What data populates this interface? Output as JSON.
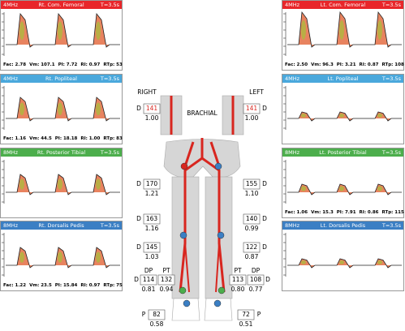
{
  "left_panels": [
    {
      "freq": "4MHz",
      "site": "Rt. Com. Femoral",
      "time": "T=3.5s",
      "footer": [
        "Fac: 2.78",
        "Vm: 107.1",
        "PI: 7.72",
        "RI: 0.97",
        "RTp: 53"
      ]
    },
    {
      "freq": "4MHz",
      "site": "Rt. Popliteal",
      "time": "T=3.5s",
      "footer": [
        "Fac: 1.16",
        "Vm: 44.5",
        "PI: 18.18",
        "RI: 1.00",
        "RTp: 83"
      ]
    },
    {
      "freq": "8MHz",
      "site": "Rt. Posterior Tibial",
      "time": "T=3.5s",
      "footer": []
    },
    {
      "freq": "8MHz",
      "site": "Rt. Dorsalis Pedis",
      "time": "T=3.5s",
      "footer": [
        "Fac: 1.22",
        "Vm: 23.5",
        "PI: 15.84",
        "RI: 0.97",
        "RTp: 75"
      ]
    }
  ],
  "right_panels": [
    {
      "freq": "4MHz",
      "site": "Lt. Com. Femoral",
      "time": "T=3.5s",
      "footer": [
        "Fac: 2.50",
        "Vm: 96.3",
        "PI: 3.21",
        "RI: 0.87",
        "RTp: 108"
      ]
    },
    {
      "freq": "4MHz",
      "site": "Lt. Popliteal",
      "time": "T=3.5s",
      "footer": []
    },
    {
      "freq": "8MHz",
      "site": "Lt. Posterior Tibial",
      "time": "T=3.5s",
      "footer": [
        "Fac: 1.06",
        "Vm: 15.3",
        "PI: 7.91",
        "RI: 0.86",
        "RTp: 115"
      ]
    },
    {
      "freq": "8MHz",
      "site": "Lt. Dorsalis Pedis",
      "time": "T=3.5s",
      "footer": []
    }
  ],
  "center": {
    "right_label": "RIGHT",
    "left_label": "LEFT",
    "brachial_label": "BRACHIAL",
    "brachial": {
      "right": {
        "marker": "D",
        "pressure": "141",
        "index": "1.00"
      },
      "left": {
        "marker": "D",
        "pressure": "141",
        "index": "1.00"
      }
    },
    "segments": [
      {
        "right": {
          "marker": "D",
          "pressure": "170",
          "index": "1.21"
        },
        "left": {
          "marker": "D",
          "pressure": "155",
          "index": "1.10"
        }
      },
      {
        "right": {
          "marker": "D",
          "pressure": "163",
          "index": "1.16"
        },
        "left": {
          "marker": "D",
          "pressure": "140",
          "index": "0.99"
        }
      },
      {
        "right": {
          "marker": "D",
          "pressure": "145",
          "index": "1.03"
        },
        "left": {
          "marker": "D",
          "pressure": "122",
          "index": "0.87"
        }
      }
    ],
    "ankle": {
      "right": {
        "marker": "D",
        "headers": [
          "DP",
          "PT"
        ],
        "pressures": [
          "114",
          "132"
        ],
        "indexes": [
          "0.81",
          "0.94"
        ]
      },
      "left": {
        "marker": "D",
        "headers": [
          "PT",
          "DP"
        ],
        "pressures": [
          "113",
          "108"
        ],
        "indexes": [
          "0.80",
          "0.77"
        ]
      }
    },
    "toe": {
      "right": {
        "marker": "P",
        "pressure": "82",
        "index": "0.58"
      },
      "left": {
        "marker": "P",
        "pressure": "72",
        "index": "0.51"
      }
    }
  }
}
